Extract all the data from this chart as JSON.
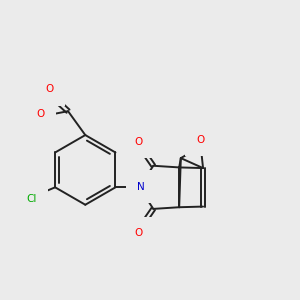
{
  "background_color": "#ebebeb",
  "bond_color": "#222222",
  "bond_width": 1.4,
  "atom_colors": {
    "O": "#ff0000",
    "N": "#0000cc",
    "Cl": "#00aa00",
    "C": "#222222"
  }
}
